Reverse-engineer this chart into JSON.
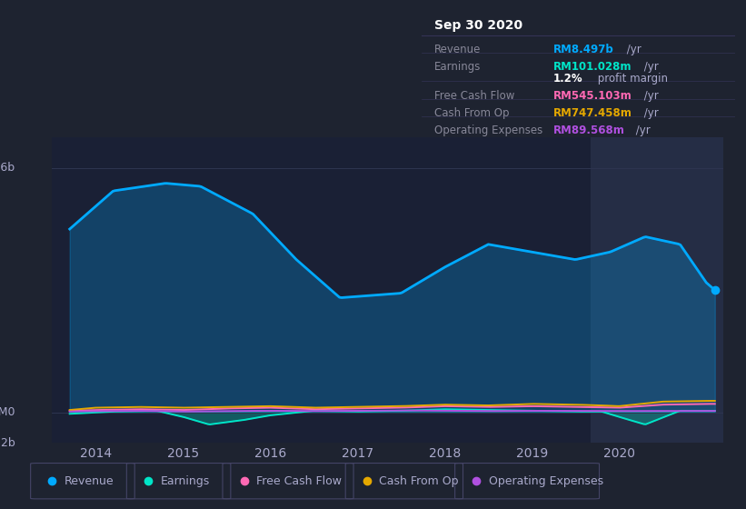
{
  "bg_color": "#1e2330",
  "plot_bg_color": "#1a2035",
  "highlight_bg": "#252d45",
  "title": "Sep 30 2020",
  "info_box_rows": [
    {
      "label": "Revenue",
      "value": "RM8.497b",
      "suffix": " /yr",
      "color": "#00aaff"
    },
    {
      "label": "Earnings",
      "value": "RM101.028m",
      "suffix": " /yr",
      "color": "#00e5c8"
    },
    {
      "label": "",
      "value": "1.2%",
      "suffix": " profit margin",
      "color": "#ffffff"
    },
    {
      "label": "Free Cash Flow",
      "value": "RM545.103m",
      "suffix": " /yr",
      "color": "#ff69b4"
    },
    {
      "label": "Cash From Op",
      "value": "RM747.458m",
      "suffix": " /yr",
      "color": "#e5a800"
    },
    {
      "label": "Operating Expenses",
      "value": "RM89.568m",
      "suffix": " /yr",
      "color": "#b050e0"
    }
  ],
  "ylim": [
    -2000000000,
    18000000000
  ],
  "xlim_start": 2013.5,
  "xlim_end": 2021.2,
  "xticks": [
    2014,
    2015,
    2016,
    2017,
    2018,
    2019,
    2020
  ],
  "highlight_start": 2019.67,
  "highlight_end": 2021.2,
  "colors": {
    "revenue": "#00aaff",
    "earnings": "#00e5c8",
    "fcf": "#ff69b4",
    "cashop": "#e5a800",
    "opex": "#b050e0"
  },
  "legend": [
    {
      "label": "Revenue",
      "color": "#00aaff"
    },
    {
      "label": "Earnings",
      "color": "#00e5c8"
    },
    {
      "label": "Free Cash Flow",
      "color": "#ff69b4"
    },
    {
      "label": "Cash From Op",
      "color": "#e5a800"
    },
    {
      "label": "Operating Expenses",
      "color": "#b050e0"
    }
  ],
  "grid_color": "#2e3550",
  "label_color": "#aaaacc",
  "divider_color": "#333355"
}
